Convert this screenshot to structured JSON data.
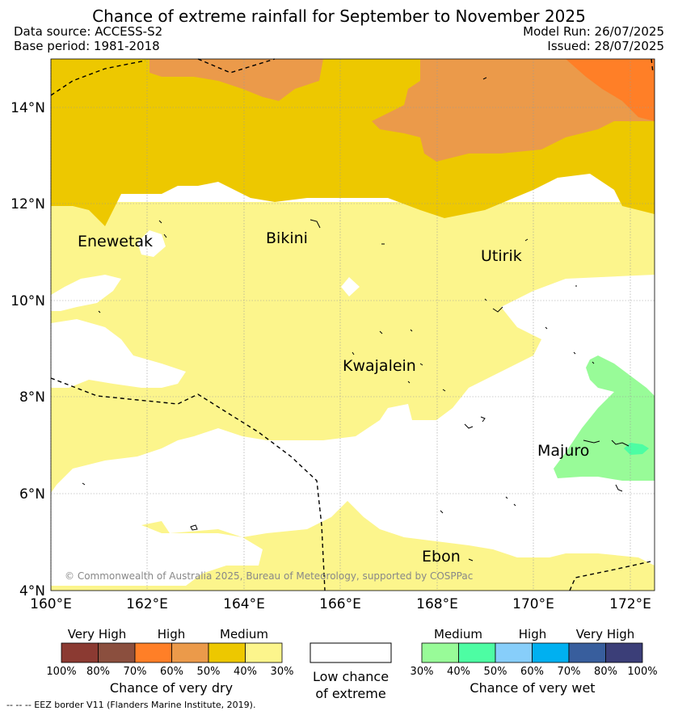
{
  "header": {
    "title": "Chance of extreme rainfall for September to November 2025",
    "data_source": "Data source: ACCESS-S2",
    "base_period": "Base period: 1981-2018",
    "model_run": "Model Run: 26/07/2025",
    "issued": "Issued: 28/07/2025"
  },
  "map": {
    "lat_labels": [
      "14°N",
      "12°N",
      "10°N",
      "8°N",
      "6°N",
      "4°N"
    ],
    "lon_labels": [
      "160°E",
      "162°E",
      "164°E",
      "166°E",
      "168°E",
      "170°E",
      "172°E"
    ],
    "places": [
      "Enewetak",
      "Bikini",
      "Utirik",
      "Kwajalein",
      "Majuro",
      "Ebon"
    ],
    "copyright": "© Commonwealth of Australia 2025, Bureau of Meteorology, supported by COSPPac"
  },
  "legend": {
    "dry": {
      "headers": [
        "Very High",
        "High",
        "Medium"
      ],
      "colors": [
        "#8b3a32",
        "#8b4f3e",
        "#ff7f27",
        "#eb9a4a",
        "#edc800",
        "#fcf58c"
      ],
      "percents": [
        "100%",
        "80%",
        "70%",
        "60%",
        "50%",
        "40%",
        "30%"
      ],
      "caption": "Chance of very dry"
    },
    "low": {
      "caption_line1": "Low chance",
      "caption_line2": "of extreme",
      "color": "#ffffff"
    },
    "wet": {
      "headers": [
        "Medium",
        "High",
        "Very High"
      ],
      "colors": [
        "#98fb98",
        "#4dfda3",
        "#87cefa",
        "#00b0f0",
        "#385e9d",
        "#3b3e78"
      ],
      "percents": [
        "30%",
        "40%",
        "50%",
        "60%",
        "70%",
        "80%",
        "100%"
      ],
      "caption": "Chance of very wet"
    }
  },
  "footnote": "-- -- -- EEZ border V11 (Flanders Marine Institute, 2019)."
}
